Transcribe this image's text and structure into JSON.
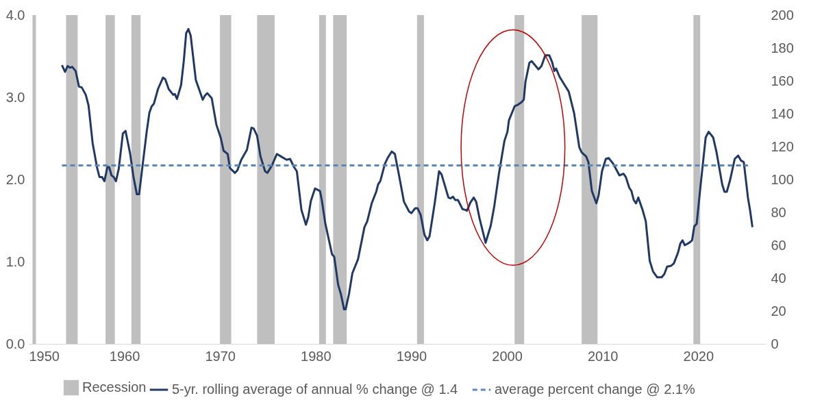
{
  "chart_data": {
    "type": "line",
    "xlim": [
      1950,
      2027
    ],
    "xticks": [
      1950,
      1960,
      1970,
      1980,
      1990,
      2000,
      2010,
      2020
    ],
    "ylim": [
      0,
      4
    ],
    "yticks": [
      {
        "value": 0,
        "label": "0.0"
      },
      {
        "value": 1,
        "label": "1.0"
      },
      {
        "value": 2,
        "label": "2.0"
      },
      {
        "value": 3,
        "label": "3.0"
      },
      {
        "value": 4,
        "label": "4.0"
      }
    ],
    "y2lim": [
      0,
      200
    ],
    "y2ticks": [
      0,
      20,
      40,
      60,
      80,
      100,
      120,
      140,
      160,
      180,
      200
    ],
    "grid": false,
    "legend": "bottom",
    "bands": [
      {
        "axis": "x",
        "from": 1950.39,
        "to": 1950.75,
        "label": "Recession",
        "color": "#bfbfbf"
      },
      {
        "axis": "x",
        "from": 1953.9,
        "to": 1955.11,
        "color": "#bfbfbf"
      },
      {
        "axis": "x",
        "from": 1958.03,
        "to": 1959.0,
        "color": "#bfbfbf"
      },
      {
        "axis": "x",
        "from": 1960.73,
        "to": 1961.69,
        "color": "#bfbfbf"
      },
      {
        "axis": "x",
        "from": 1969.99,
        "to": 1971.17,
        "color": "#bfbfbf"
      },
      {
        "axis": "x",
        "from": 1973.88,
        "to": 1975.71,
        "color": "#bfbfbf"
      },
      {
        "axis": "x",
        "from": 1980.36,
        "to": 1981.07,
        "color": "#bfbfbf"
      },
      {
        "axis": "x",
        "from": 1981.83,
        "to": 1983.25,
        "color": "#bfbfbf"
      },
      {
        "axis": "x",
        "from": 1990.6,
        "to": 1991.32,
        "color": "#bfbfbf"
      },
      {
        "axis": "x",
        "from": 2000.8,
        "to": 2001.8,
        "color": "#bfbfbf"
      },
      {
        "axis": "x",
        "from": 2007.81,
        "to": 2009.47,
        "color": "#bfbfbf"
      },
      {
        "axis": "x",
        "from": 2019.5,
        "to": 2020.21,
        "color": "#bfbfbf"
      }
    ],
    "series": [
      {
        "name": "5-yr. rolling average of annual % change @ 1.4",
        "color": "#1f3864",
        "line_style": "solid",
        "x": [
          1953.47,
          1953.79,
          1954.07,
          1954.31,
          1954.54,
          1954.9,
          1955.25,
          1955.54,
          1955.96,
          1956.25,
          1956.68,
          1957.15,
          1957.39,
          1957.67,
          1957.91,
          1958.22,
          1958.41,
          1958.65,
          1958.88,
          1959.12,
          1959.41,
          1959.84,
          1960.12,
          1960.59,
          1960.95,
          1961.3,
          1961.54,
          1961.9,
          1962.33,
          1962.61,
          1962.85,
          1963.08,
          1963.51,
          1964.04,
          1964.27,
          1964.63,
          1965.1,
          1965.27,
          1965.5,
          1965.93,
          1966.21,
          1966.46,
          1966.69,
          1966.93,
          1967.47,
          1968.19,
          1968.42,
          1968.66,
          1969.13,
          1969.61,
          1970.09,
          1970.37,
          1970.8,
          1971.03,
          1971.55,
          1971.81,
          1972.22,
          1972.81,
          1973.29,
          1973.52,
          1973.88,
          1974.23,
          1974.71,
          1974.95,
          1975.42,
          1975.94,
          1976.37,
          1976.96,
          1977.32,
          1977.74,
          1978.03,
          1978.51,
          1978.98,
          1979.22,
          1979.5,
          1979.93,
          1980.45,
          1980.64,
          1981.0,
          1981.71,
          1981.94,
          1982.35,
          1982.65,
          1982.97,
          1983.13,
          1983.49,
          1983.84,
          1984.43,
          1985.1,
          1985.39,
          1985.86,
          1986.33,
          1986.53,
          1986.76,
          1987.24,
          1987.52,
          1987.95,
          1988.28,
          1988.7,
          1989.23,
          1989.77,
          1990.01,
          1990.41,
          1990.65,
          1990.98,
          1991.37,
          1991.67,
          1991.91,
          1992.46,
          1992.9,
          1993.17,
          1993.88,
          1994.11,
          1994.36,
          1994.59,
          1994.88,
          1995.35,
          1995.64,
          1995.82,
          1996.18,
          1996.53,
          1996.78,
          1997.13,
          1997.77,
          1998.31,
          1998.67,
          1999.15,
          1999.74,
          2000.05,
          2000.21,
          2000.8,
          2001.16,
          2001.52,
          2001.76,
          2001.94,
          2002.35,
          2002.58,
          2003.3,
          2003.61,
          2004.01,
          2004.43,
          2004.72,
          2004.96,
          2005.14,
          2005.5,
          2006.03,
          2006.46,
          2007.02,
          2007.57,
          2007.81,
          2008.28,
          2008.52,
          2008.88,
          2009.35,
          2009.59,
          2009.94,
          2010.34,
          2010.65,
          2011.12,
          2011.76,
          2012.19,
          2012.43,
          2012.79,
          2013.02,
          2013.26,
          2013.5,
          2013.74,
          2014.21,
          2014.52,
          2014.93,
          2015.28,
          2015.71,
          2016.18,
          2016.46,
          2016.75,
          2017.17,
          2017.46,
          2017.89,
          2018.13,
          2018.36,
          2018.6,
          2019.07,
          2019.36,
          2019.59,
          2019.84,
          2020.26,
          2020.78,
          2021.09,
          2021.57,
          2021.92,
          2022.51,
          2022.75,
          2022.99,
          2023.35,
          2023.82,
          2024.18,
          2024.48,
          2024.77,
          2025.2,
          2025.43,
          2025.67
        ],
        "values": [
          3.39,
          3.31,
          3.38,
          3.36,
          3.37,
          3.32,
          3.13,
          3.12,
          3.03,
          2.9,
          2.44,
          2.14,
          2.03,
          2.03,
          1.98,
          2.15,
          2.15,
          2.05,
          2.03,
          1.98,
          2.13,
          2.56,
          2.59,
          2.32,
          2.03,
          1.82,
          1.82,
          2.17,
          2.58,
          2.81,
          2.89,
          2.92,
          3.1,
          3.24,
          3.22,
          3.1,
          3.03,
          3.04,
          2.98,
          3.15,
          3.44,
          3.78,
          3.83,
          3.75,
          3.21,
          2.97,
          3.02,
          3.05,
          2.99,
          2.67,
          2.5,
          2.35,
          2.31,
          2.14,
          2.08,
          2.11,
          2.24,
          2.36,
          2.63,
          2.62,
          2.53,
          2.28,
          2.1,
          2.08,
          2.17,
          2.31,
          2.28,
          2.24,
          2.25,
          2.15,
          2.1,
          1.63,
          1.45,
          1.54,
          1.74,
          1.89,
          1.86,
          1.75,
          1.47,
          1.09,
          1.06,
          0.72,
          0.6,
          0.42,
          0.42,
          0.61,
          0.86,
          1.03,
          1.42,
          1.49,
          1.71,
          1.85,
          1.94,
          1.98,
          2.19,
          2.26,
          2.34,
          2.31,
          2.06,
          1.73,
          1.61,
          1.59,
          1.65,
          1.65,
          1.57,
          1.33,
          1.26,
          1.31,
          1.72,
          2.1,
          2.06,
          1.78,
          1.77,
          1.79,
          1.75,
          1.75,
          1.64,
          1.63,
          1.62,
          1.72,
          1.78,
          1.73,
          1.53,
          1.23,
          1.44,
          1.67,
          2.06,
          2.47,
          2.58,
          2.72,
          2.89,
          2.91,
          2.94,
          2.97,
          3.19,
          3.42,
          3.44,
          3.34,
          3.38,
          3.51,
          3.51,
          3.43,
          3.32,
          3.35,
          3.25,
          3.15,
          3.07,
          2.81,
          2.39,
          2.33,
          2.28,
          2.21,
          1.86,
          1.71,
          1.81,
          2.1,
          2.25,
          2.26,
          2.19,
          2.05,
          2.07,
          2.03,
          1.9,
          1.86,
          1.75,
          1.71,
          1.78,
          1.62,
          1.49,
          1.01,
          0.88,
          0.81,
          0.81,
          0.85,
          0.94,
          0.95,
          0.98,
          1.11,
          1.22,
          1.26,
          1.2,
          1.23,
          1.26,
          1.43,
          1.46,
          1.94,
          2.51,
          2.58,
          2.51,
          2.33,
          1.94,
          1.85,
          1.85,
          2.0,
          2.25,
          2.29,
          2.23,
          2.21,
          1.78,
          1.62,
          1.42
        ]
      },
      {
        "name": "average percent change @ 2.1%",
        "color": "#5b87b7",
        "line_style": "dashed",
        "x": [
          1953.47,
          2025.2
        ],
        "values": [
          2.17,
          2.17
        ]
      }
    ]
  }
}
